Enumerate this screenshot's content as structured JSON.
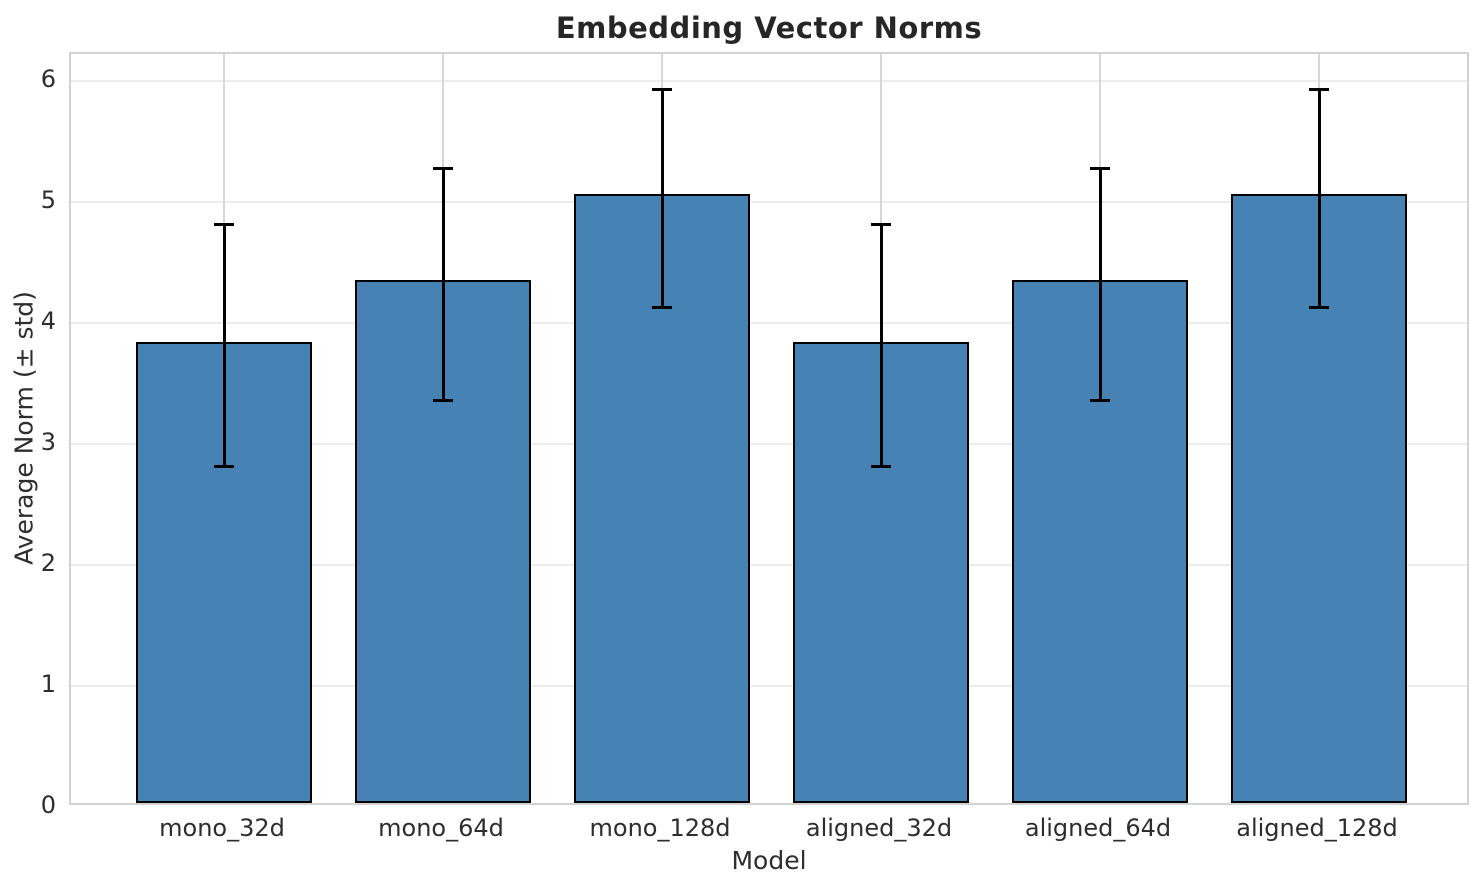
{
  "chart_data": {
    "type": "bar",
    "title": "Embedding Vector Norms",
    "xlabel": "Model",
    "ylabel": "Average Norm (± std)",
    "categories": [
      "mono_32d",
      "mono_64d",
      "mono_128d",
      "aligned_32d",
      "aligned_64d",
      "aligned_128d"
    ],
    "values": [
      3.81,
      4.32,
      5.03,
      3.81,
      4.32,
      5.03
    ],
    "errors": [
      1.0,
      0.96,
      0.9,
      1.0,
      0.96,
      0.9
    ],
    "yticks": [
      0,
      1,
      2,
      3,
      4,
      5,
      6
    ],
    "ylim": [
      0,
      6.22
    ],
    "grid": true,
    "legend": "none",
    "bar_color": "#4682B4",
    "bar_edge_color": "#000000",
    "error_color": "#000000",
    "hgrid_color": "#ececec",
    "vgrid_color": "#d7d7d7",
    "spine_color": "#d2d2d2",
    "text_color": "#2e2e2e",
    "title_color": "#262626"
  }
}
